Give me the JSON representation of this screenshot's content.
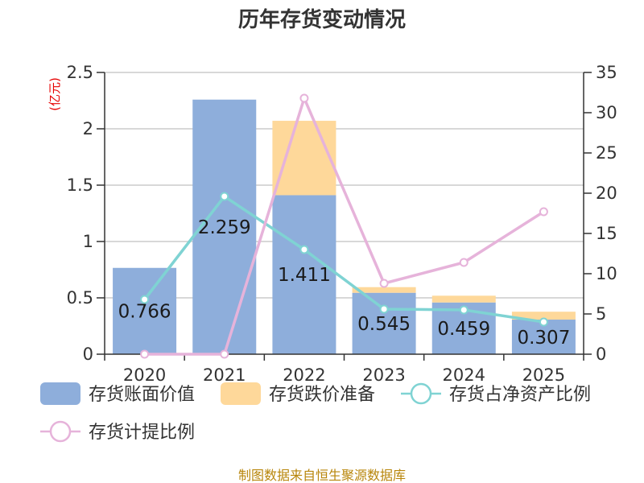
{
  "chart_data": {
    "type": "bar",
    "title": "历年存货变动情况",
    "categories": [
      "2020",
      "2021",
      "2022",
      "2023",
      "2024",
      "2025"
    ],
    "y_left": {
      "unit": "(亿元)",
      "ylim": [
        0,
        2.5
      ],
      "ticks": [
        "0",
        "0.5",
        "1",
        "1.5",
        "2",
        "2.5"
      ],
      "tick_values": [
        0,
        0.5,
        1,
        1.5,
        2,
        2.5
      ]
    },
    "y_right": {
      "unit": "%",
      "ylim": [
        0,
        35
      ],
      "ticks": [
        "0",
        "5",
        "10",
        "15",
        "20",
        "25",
        "30",
        "35"
      ],
      "tick_values": [
        0,
        5,
        10,
        15,
        20,
        25,
        30,
        35
      ]
    },
    "series": [
      {
        "name": "存货账面价值",
        "kind": "bar",
        "stack": "inv",
        "axis": "left",
        "color": "#8eaedb",
        "values": [
          0.766,
          2.259,
          1.411,
          0.545,
          0.459,
          0.307
        ],
        "labels": [
          "0.766",
          "2.259",
          "1.411",
          "0.545",
          "0.459",
          "0.307"
        ]
      },
      {
        "name": "存货跌价准备",
        "kind": "bar",
        "stack": "inv",
        "axis": "left",
        "color": "#fed89a",
        "values": [
          0,
          0,
          0.66,
          0.05,
          0.06,
          0.07
        ]
      },
      {
        "name": "存货占净资产比例",
        "kind": "line",
        "axis": "right",
        "color": "#7fd3d3",
        "values": [
          6.8,
          19.6,
          13.0,
          5.6,
          5.5,
          4.0
        ]
      },
      {
        "name": "存货计提比例",
        "kind": "line",
        "axis": "right",
        "color": "#e6b3da",
        "values": [
          0.0,
          0.0,
          31.8,
          8.8,
          11.4,
          17.7
        ]
      }
    ],
    "grid": true,
    "legend_position": "bottom"
  },
  "footer": {
    "source": "制图数据来自恒生聚源数据库"
  }
}
